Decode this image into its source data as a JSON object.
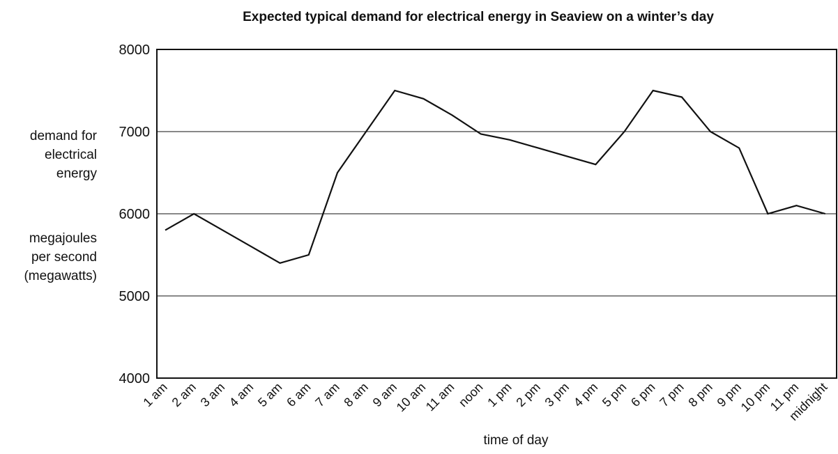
{
  "chart_data": {
    "type": "line",
    "title": "Expected typical demand for electrical energy in Seaview on a winter’s day",
    "xlabel": "time of day",
    "ylabel_lines": [
      "demand for",
      "electrical",
      "energy"
    ],
    "yunit_lines": [
      "megajoules",
      "per second",
      "(megawatts)"
    ],
    "categories": [
      "1 am",
      "2 am",
      "3 am",
      "4 am",
      "5 am",
      "6 am",
      "7 am",
      "8 am",
      "9 am",
      "10 am",
      "11 am",
      "noon",
      "1 pm",
      "2 pm",
      "3 pm",
      "4 pm",
      "5 pm",
      "6 pm",
      "7 pm",
      "8 pm",
      "9 pm",
      "10 pm",
      "11 pm",
      "midnight"
    ],
    "series": [
      {
        "values": [
          5800,
          6000,
          5800,
          5600,
          5400,
          5500,
          6500,
          7000,
          7500,
          7400,
          7200,
          6970,
          6900,
          6800,
          6700,
          6600,
          7000,
          7500,
          7420,
          7000,
          6800,
          6000,
          6100,
          6000
        ]
      }
    ],
    "ylim": [
      4000,
      8000
    ],
    "yticks": [
      "8000",
      "7000",
      "6000",
      "5000",
      "4000"
    ],
    "grid": true
  }
}
